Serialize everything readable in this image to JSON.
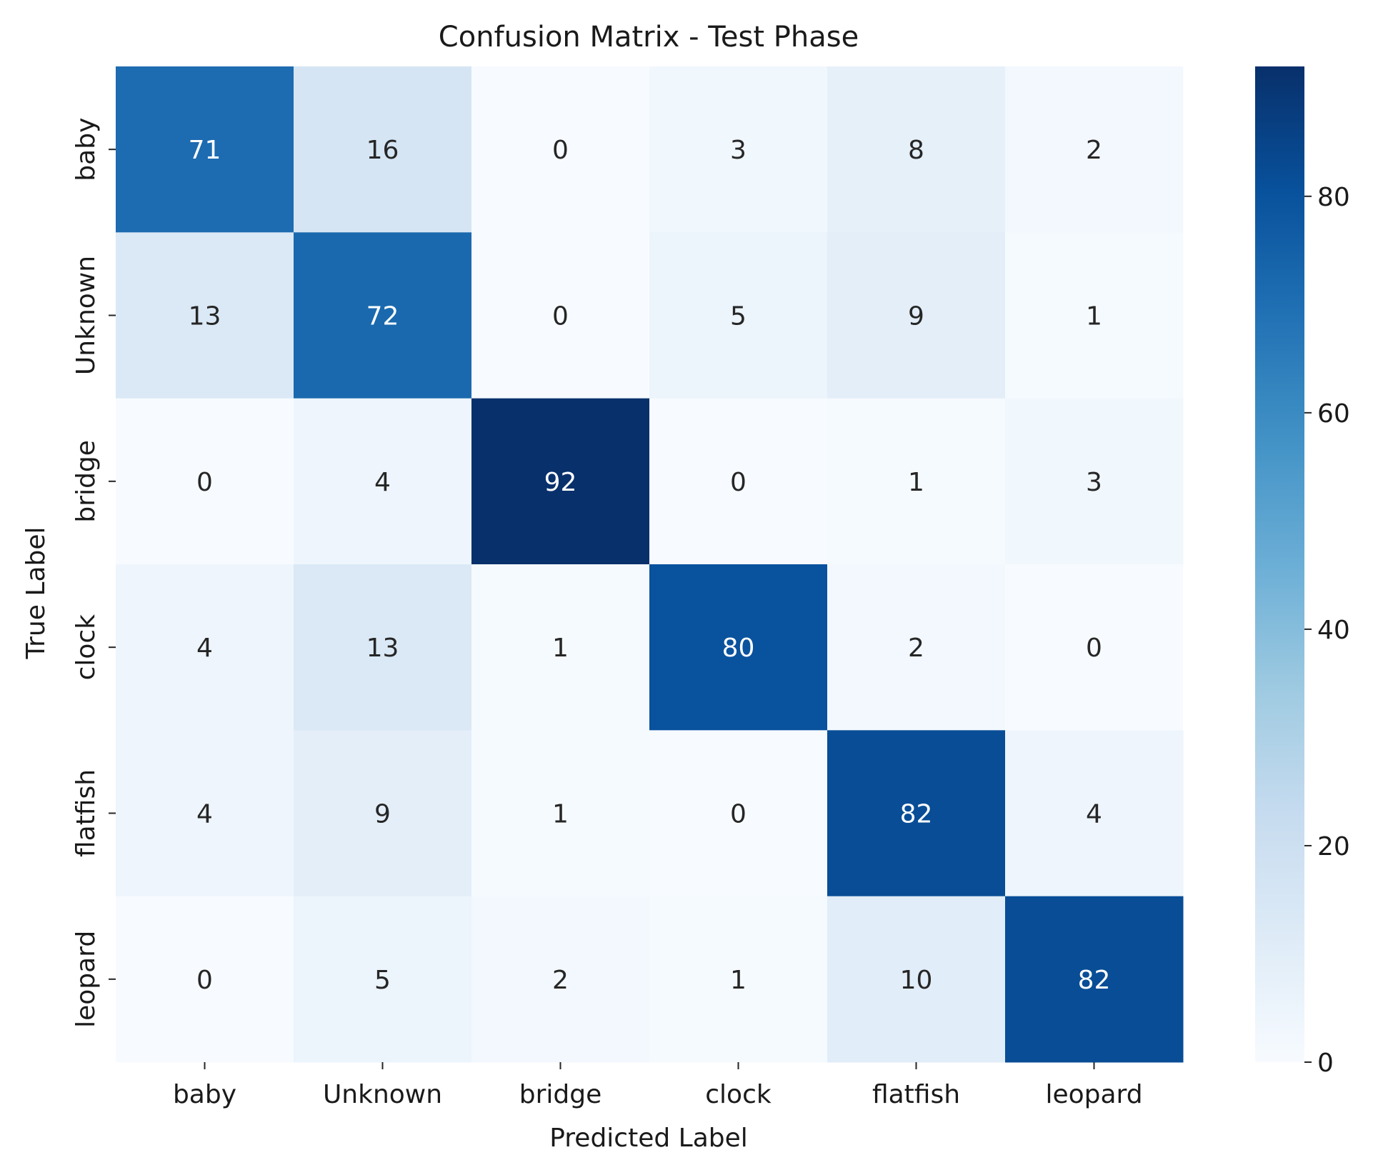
{
  "chart_data": {
    "type": "heatmap",
    "title": "Confusion Matrix - Test Phase",
    "xlabel": "Predicted Label",
    "ylabel": "True Label",
    "x_categories": [
      "baby",
      "Unknown",
      "bridge",
      "clock",
      "flatfish",
      "leopard"
    ],
    "y_categories": [
      "baby",
      "Unknown",
      "bridge",
      "clock",
      "flatfish",
      "leopard"
    ],
    "values": [
      [
        71,
        16,
        0,
        3,
        8,
        2
      ],
      [
        13,
        72,
        0,
        5,
        9,
        1
      ],
      [
        0,
        4,
        92,
        0,
        1,
        3
      ],
      [
        4,
        13,
        1,
        80,
        2,
        0
      ],
      [
        4,
        9,
        1,
        0,
        82,
        4
      ],
      [
        0,
        5,
        2,
        1,
        10,
        82
      ]
    ],
    "colormap": "Blues",
    "colorbar": {
      "min": 0,
      "max": 92,
      "ticks": [
        0,
        20,
        40,
        60,
        80
      ]
    },
    "grid": false
  }
}
